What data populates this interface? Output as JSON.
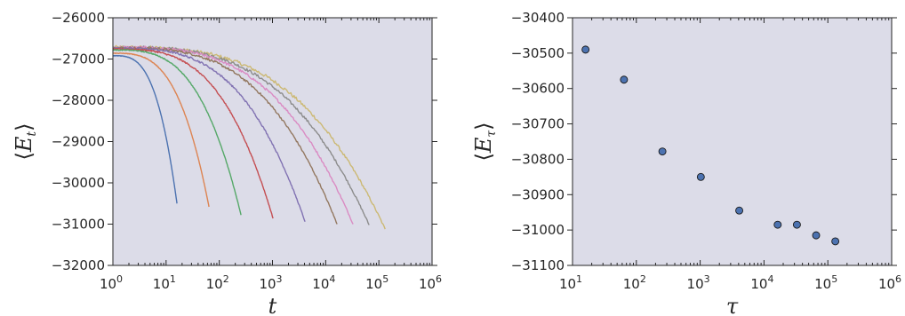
{
  "chart_data": [
    {
      "type": "line",
      "xscale": "log",
      "xlim": [
        1,
        1000000
      ],
      "ylim": [
        -32000,
        -26000
      ],
      "xlabel": "t",
      "ylabel": "⟨E_t⟩",
      "yticks": [
        "−32000",
        "−31000",
        "−30000",
        "−29000",
        "−28000",
        "−27000",
        "−26000"
      ],
      "ytick_values": [
        -32000,
        -31000,
        -30000,
        -29000,
        -28000,
        -27000,
        -26000
      ],
      "xticks": [
        {
          "base": "10",
          "exp": "0"
        },
        {
          "base": "10",
          "exp": "1"
        },
        {
          "base": "10",
          "exp": "2"
        },
        {
          "base": "10",
          "exp": "3"
        },
        {
          "base": "10",
          "exp": "4"
        },
        {
          "base": "10",
          "exp": "5"
        },
        {
          "base": "10",
          "exp": "6"
        }
      ],
      "xtick_values": [
        1,
        10,
        100,
        1000,
        10000,
        100000,
        1000000
      ],
      "grid": false,
      "background": "#dcdce8",
      "series": [
        {
          "color": "#4c72b0",
          "end_t": 16,
          "end_E": -30500,
          "start_E": -26920,
          "noise": 5
        },
        {
          "color": "#dd8452",
          "end_t": 64,
          "end_E": -30580,
          "start_E": -26860,
          "noise": 8
        },
        {
          "color": "#55a868",
          "end_t": 256,
          "end_E": -30780,
          "start_E": -26780,
          "noise": 12
        },
        {
          "color": "#c44e52",
          "end_t": 1024,
          "end_E": -30860,
          "start_E": -26760,
          "noise": 18
        },
        {
          "color": "#8172b2",
          "end_t": 4096,
          "end_E": -30940,
          "start_E": -26740,
          "noise": 24
        },
        {
          "color": "#937860",
          "end_t": 16384,
          "end_E": -31000,
          "start_E": -26730,
          "noise": 30
        },
        {
          "color": "#da8bc3",
          "end_t": 32768,
          "end_E": -31000,
          "start_E": -26720,
          "noise": 34
        },
        {
          "color": "#8c8c8c",
          "end_t": 65536,
          "end_E": -31020,
          "start_E": -26720,
          "noise": 38
        },
        {
          "color": "#ccb974",
          "end_t": 131072,
          "end_E": -31120,
          "start_E": -26720,
          "noise": 46
        }
      ]
    },
    {
      "type": "scatter",
      "xscale": "log",
      "xlim": [
        10,
        1000000
      ],
      "ylim": [
        -31100,
        -30400
      ],
      "xlabel": "τ",
      "ylabel": "⟨E_τ⟩",
      "yticks": [
        "−31100",
        "−31000",
        "−30900",
        "−30800",
        "−30700",
        "−30600",
        "−30500",
        "−30400"
      ],
      "ytick_values": [
        -31100,
        -31000,
        -30900,
        -30800,
        -30700,
        -30600,
        -30500,
        -30400
      ],
      "xticks": [
        {
          "base": "10",
          "exp": "1"
        },
        {
          "base": "10",
          "exp": "2"
        },
        {
          "base": "10",
          "exp": "3"
        },
        {
          "base": "10",
          "exp": "4"
        },
        {
          "base": "10",
          "exp": "5"
        },
        {
          "base": "10",
          "exp": "6"
        }
      ],
      "xtick_values": [
        10,
        100,
        1000,
        10000,
        100000,
        1000000
      ],
      "grid": false,
      "background": "#dcdce8",
      "marker_color": "#4c72b0",
      "x": [
        16,
        64,
        256,
        1024,
        4096,
        16384,
        32768,
        65536,
        131072
      ],
      "y": [
        -30490,
        -30575,
        -30778,
        -30850,
        -30945,
        -30985,
        -30985,
        -31015,
        -31032
      ]
    }
  ]
}
